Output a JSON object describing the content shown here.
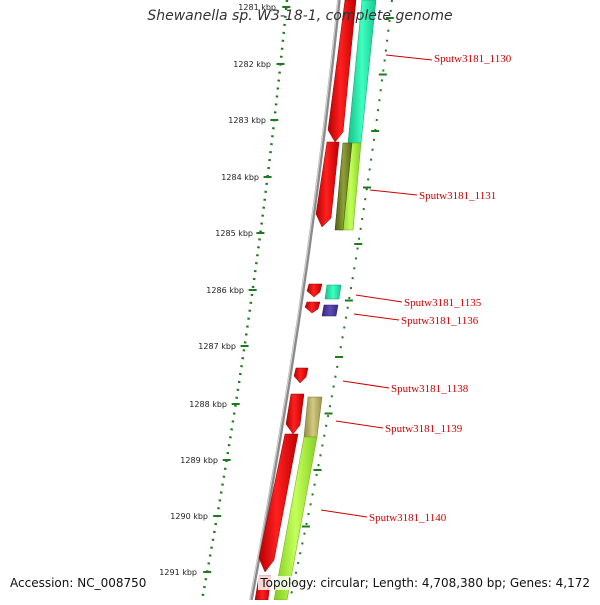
{
  "title": "Shewanella sp. W3-18-1, complete genome",
  "accession": "Accession: NC_008750",
  "summary": "Topology: circular; Length: 4,708,380 bp; Genes: 4,172",
  "colors": {
    "forward_gene": "#ee0000",
    "backbone": "#8a8a8a",
    "ruler": "#1e7a1e",
    "label": "#cc0000",
    "teal": "#22e6a8",
    "lime": "#a6f03a",
    "olive": "#7a8a2a",
    "khaki": "#b8b060",
    "indigo": "#4a3a9a"
  },
  "ruler_labels": [
    "1281 kbp",
    "1282 kbp",
    "1283 kbp",
    "1284 kbp",
    "1285 kbp",
    "1286 kbp",
    "1287 kbp",
    "1288 kbp",
    "1289 kbp",
    "1290 kbp",
    "1291 kbp"
  ],
  "genes": [
    {
      "label": "Sputw3181_1130"
    },
    {
      "label": "Sputw3181_1131"
    },
    {
      "label": "Sputw3181_1135"
    },
    {
      "label": "Sputw3181_1136"
    },
    {
      "label": "Sputw3181_1138"
    },
    {
      "label": "Sputw3181_1139"
    },
    {
      "label": "Sputw3181_1140"
    }
  ]
}
